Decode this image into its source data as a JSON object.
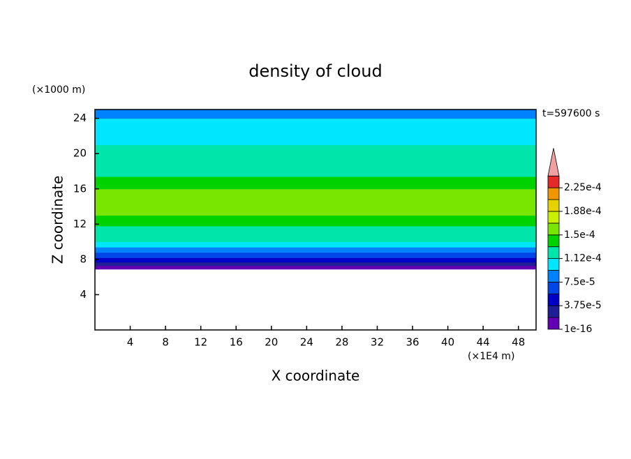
{
  "chart_data": {
    "type": "contour",
    "title": "density of cloud",
    "y_unit": "(×1000 m)",
    "x_unit": "(×1E4 m)",
    "time_label": "t=597600 s",
    "xlabel": "X coordinate",
    "ylabel": "Z coordinate",
    "xlim": [
      0,
      50
    ],
    "ylim": [
      0,
      25
    ],
    "xticks": [
      4,
      8,
      12,
      16,
      20,
      24,
      28,
      32,
      36,
      40,
      44,
      48
    ],
    "yticks": [
      4,
      8,
      12,
      16,
      20,
      24
    ],
    "z_edges": [
      6.9,
      7.3,
      7.7,
      8.2,
      8.8,
      9.4,
      10.0,
      10.8,
      11.8,
      13.0,
      16.0,
      17.4,
      18.4,
      20.0,
      21.0,
      22.0,
      24.0,
      25
    ],
    "values": [
      1e-05,
      3e-05,
      5e-05,
      7e-05,
      9e-05,
      0.0001,
      0.00012,
      0.00013,
      0.00014,
      0.00016,
      0.00014,
      0.00013,
      0.00013,
      0.00012,
      0.0001,
      0.0001,
      9e-05
    ],
    "clim": [
      0,
      0.00024375
    ],
    "colors": [
      "#6400b4",
      "#1e1e96",
      "#0000c8",
      "#0046e6",
      "#0082ff",
      "#00e6ff",
      "#00e6aa",
      "#00d200",
      "#78e600",
      "#c8f000",
      "#e6d200",
      "#f09600",
      "#e62828"
    ],
    "overflow_color": "#f0a0a0",
    "colorbar_ticks": [
      1e-16,
      {
        "value": 3.75e-05,
        "label": "3.75e-5"
      },
      {
        "value": 7.5e-05,
        "label": "7.5e-5"
      },
      {
        "value": 0.0001125,
        "label": "1.12e-4"
      },
      {
        "value": 0.00015,
        "label": "1.5e-4"
      },
      {
        "value": 0.0001875,
        "label": "1.88e-4"
      },
      {
        "value": 0.000225,
        "label": "2.25e-4"
      }
    ]
  }
}
